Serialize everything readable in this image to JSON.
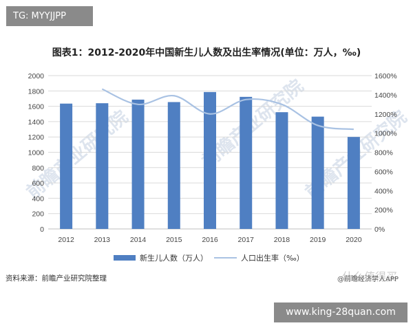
{
  "overlay": {
    "top_left_tag": "TG: MYYJJPP",
    "bottom_banner": "www.king-28quan.com",
    "corner_watermark": "什么值得买"
  },
  "colors": {
    "bar": "#4f7fc2",
    "line": "#a9c2e3",
    "grid": "#d9d9d9"
  },
  "chart_data": {
    "type": "bar",
    "title": "图表1：2012-2020年中国新生儿人数及出生率情况(单位：万人，‰)",
    "categories": [
      "2012",
      "2013",
      "2014",
      "2015",
      "2016",
      "2017",
      "2018",
      "2019",
      "2020"
    ],
    "series": [
      {
        "name": "新生儿人数（万人）",
        "type": "bar",
        "axis": "left",
        "values": [
          1635,
          1640,
          1687,
          1655,
          1786,
          1723,
          1523,
          1465,
          1200
        ]
      },
      {
        "name": "人口出生率（‰）",
        "type": "line",
        "axis": "right",
        "values": [
          null,
          1460,
          1300,
          1390,
          1200,
          1350,
          1300,
          1080,
          1040
        ]
      }
    ],
    "ylim_left": [
      0,
      2000
    ],
    "yticks_left": [
      "0",
      "200",
      "400",
      "600",
      "800",
      "1000",
      "1200",
      "1400",
      "1600",
      "1800",
      "2000"
    ],
    "ylim_right": [
      0,
      1600
    ],
    "yticks_right": [
      "0%",
      "200%",
      "400%",
      "600%",
      "800%",
      "1000%",
      "1200%",
      "1400%",
      "1600%"
    ],
    "grid": true,
    "legend_position": "bottom"
  },
  "source": "资料来源：前瞻产业研究院整理",
  "credit": "@前瞻经济学人APP"
}
